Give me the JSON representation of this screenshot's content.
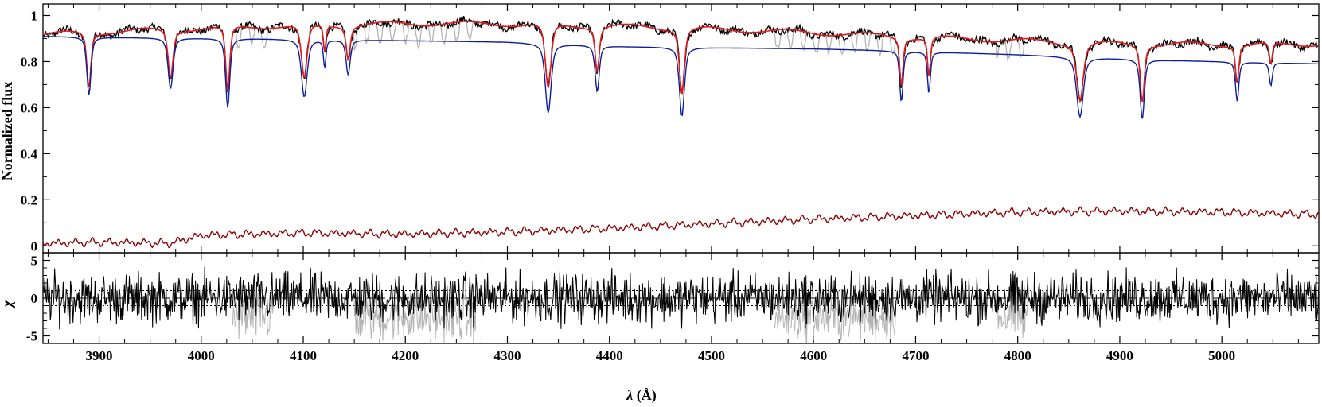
{
  "chart_data": [
    {
      "type": "line",
      "panel": "spectrum",
      "xlabel": "",
      "ylabel": "Normalized flux",
      "xlim": [
        3845,
        5095
      ],
      "ylim": [
        -0.03,
        1.05
      ],
      "xticks": [
        3900,
        4000,
        4100,
        4200,
        4300,
        4400,
        4500,
        4600,
        4700,
        4800,
        4900,
        5000
      ],
      "yticks": [
        0,
        0.2,
        0.4,
        0.6,
        0.8,
        1
      ],
      "ytick_labels": [
        "0",
        "0.2",
        "0.4",
        "0.6",
        "0.8",
        "1"
      ],
      "lines": [
        {
          "x": 3890,
          "depth": 0.25,
          "w": 2.5
        },
        {
          "x": 3970,
          "depth": 0.22,
          "w": 3
        },
        {
          "x": 4026,
          "depth": 0.3,
          "w": 2.5
        },
        {
          "x": 4101,
          "depth": 0.25,
          "w": 3.5
        },
        {
          "x": 4121,
          "depth": 0.12,
          "w": 1.5
        },
        {
          "x": 4144,
          "depth": 0.15,
          "w": 2.5
        },
        {
          "x": 4340,
          "depth": 0.3,
          "w": 3.5
        },
        {
          "x": 4388,
          "depth": 0.2,
          "w": 2.5
        },
        {
          "x": 4471,
          "depth": 0.3,
          "w": 3
        },
        {
          "x": 4686,
          "depth": 0.22,
          "w": 2
        },
        {
          "x": 4713,
          "depth": 0.18,
          "w": 1.8
        },
        {
          "x": 4861,
          "depth": 0.26,
          "w": 4
        },
        {
          "x": 4922,
          "depth": 0.26,
          "w": 2.5
        },
        {
          "x": 5015,
          "depth": 0.17,
          "w": 2
        },
        {
          "x": 5048,
          "depth": 0.1,
          "w": 1.8
        }
      ],
      "series": [
        {
          "role": "observed",
          "color": "#000000"
        },
        {
          "role": "observed-masked",
          "color": "#b4b4b4"
        },
        {
          "role": "composite-model",
          "color": "#e41a1c"
        },
        {
          "role": "component-1",
          "color": "#0a1f9a",
          "continuum": [
            [
              3845,
              0.91
            ],
            [
              3915,
              0.905
            ],
            [
              4050,
              0.9
            ],
            [
              4300,
              0.885
            ],
            [
              4420,
              0.865
            ],
            [
              4600,
              0.855
            ],
            [
              4650,
              0.85
            ],
            [
              4800,
              0.83
            ],
            [
              4950,
              0.805
            ],
            [
              5095,
              0.79
            ]
          ]
        },
        {
          "role": "component-2",
          "color": "#8b0000",
          "continuum": [
            [
              3845,
              0.015
            ],
            [
              3900,
              0.02
            ],
            [
              3970,
              0.015
            ],
            [
              4000,
              0.05
            ],
            [
              4100,
              0.06
            ],
            [
              4200,
              0.055
            ],
            [
              4300,
              0.065
            ],
            [
              4400,
              0.08
            ],
            [
              4500,
              0.1
            ],
            [
              4600,
              0.12
            ],
            [
              4700,
              0.135
            ],
            [
              4800,
              0.15
            ],
            [
              4900,
              0.155
            ],
            [
              5000,
              0.15
            ],
            [
              5095,
              0.14
            ]
          ]
        }
      ]
    },
    {
      "type": "line",
      "panel": "residuals",
      "xlabel": "λ (Å)",
      "ylabel": "χ",
      "xlim": [
        3845,
        5095
      ],
      "ylim": [
        -6,
        6
      ],
      "xticks": [
        3900,
        4000,
        4100,
        4200,
        4300,
        4400,
        4500,
        4600,
        4700,
        4800,
        4900,
        5000
      ],
      "yticks": [
        -5,
        0,
        5
      ],
      "ytick_labels": [
        "-5",
        "0",
        "5"
      ],
      "reference_lines": [
        {
          "y": 0,
          "style": "dashed"
        },
        {
          "y": 1,
          "style": "dotted"
        },
        {
          "y": -1,
          "style": "dotted"
        }
      ],
      "series": [
        {
          "role": "residual",
          "color": "#000000"
        },
        {
          "role": "residual-masked",
          "color": "#b4b4b4"
        }
      ]
    }
  ],
  "labels": {
    "top_ylabel": "Normalized flux",
    "bottom_ylabel": "χ",
    "xlabel_lambda": "λ",
    "xlabel_unit": " (Å)"
  }
}
